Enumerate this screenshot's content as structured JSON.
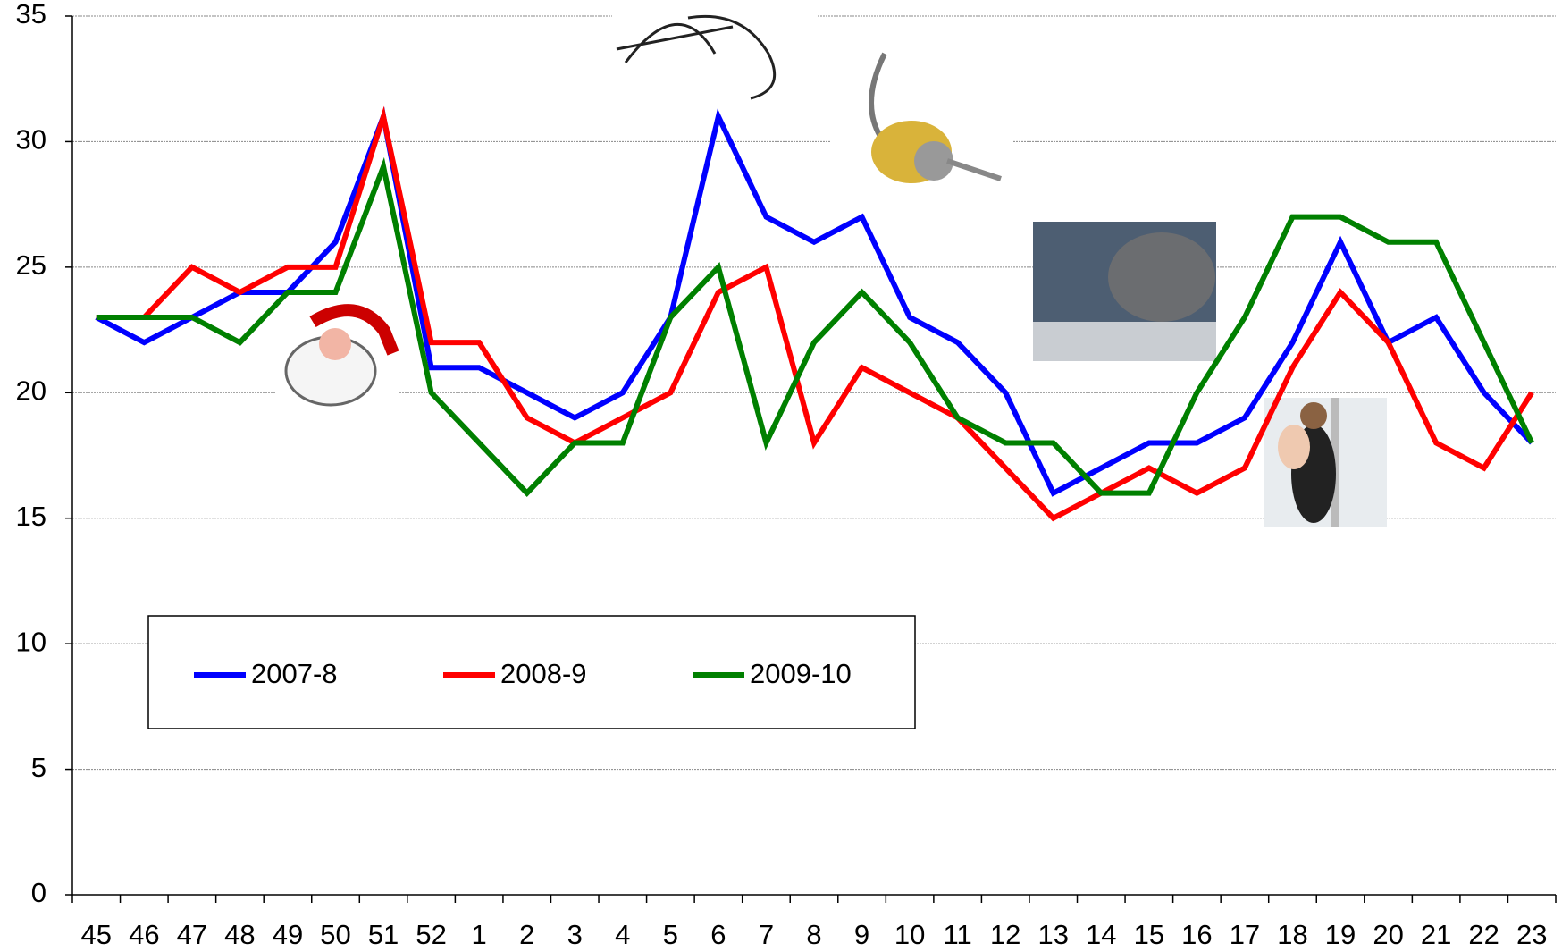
{
  "chart_data": {
    "type": "line",
    "categories": [
      "45",
      "46",
      "47",
      "48",
      "49",
      "50",
      "51",
      "52",
      "1",
      "2",
      "3",
      "4",
      "5",
      "6",
      "7",
      "8",
      "9",
      "10",
      "11",
      "12",
      "13",
      "14",
      "15",
      "16",
      "17",
      "18",
      "19",
      "20",
      "21",
      "22",
      "23"
    ],
    "series": [
      {
        "name": "2007-8",
        "color": "#0000ff",
        "values": [
          23,
          22,
          23,
          24,
          24,
          26,
          31,
          21,
          21,
          20,
          19,
          20,
          23,
          31,
          27,
          26,
          27,
          23,
          22,
          20,
          16,
          17,
          18,
          18,
          19,
          22,
          26,
          22,
          23,
          20,
          18
        ]
      },
      {
        "name": "2008-9",
        "color": "#ff0000",
        "values": [
          23,
          23,
          25,
          24,
          25,
          25,
          31,
          22,
          22,
          19,
          18,
          19,
          20,
          24,
          25,
          18,
          21,
          20,
          19,
          17,
          15,
          16,
          17,
          16,
          17,
          21,
          24,
          22,
          18,
          17,
          20
        ]
      },
      {
        "name": "2009-10",
        "color": "#008000",
        "values": [
          23,
          23,
          23,
          22,
          24,
          24,
          29,
          20,
          18,
          16,
          18,
          18,
          23,
          25,
          18,
          22,
          24,
          22,
          19,
          18,
          18,
          16,
          16,
          20,
          23,
          27,
          27,
          26,
          26,
          22,
          18
        ]
      }
    ],
    "ylim": [
      0,
      35
    ],
    "yticks": [
      0,
      5,
      10,
      15,
      20,
      25,
      30,
      35
    ],
    "grid": true
  }
}
